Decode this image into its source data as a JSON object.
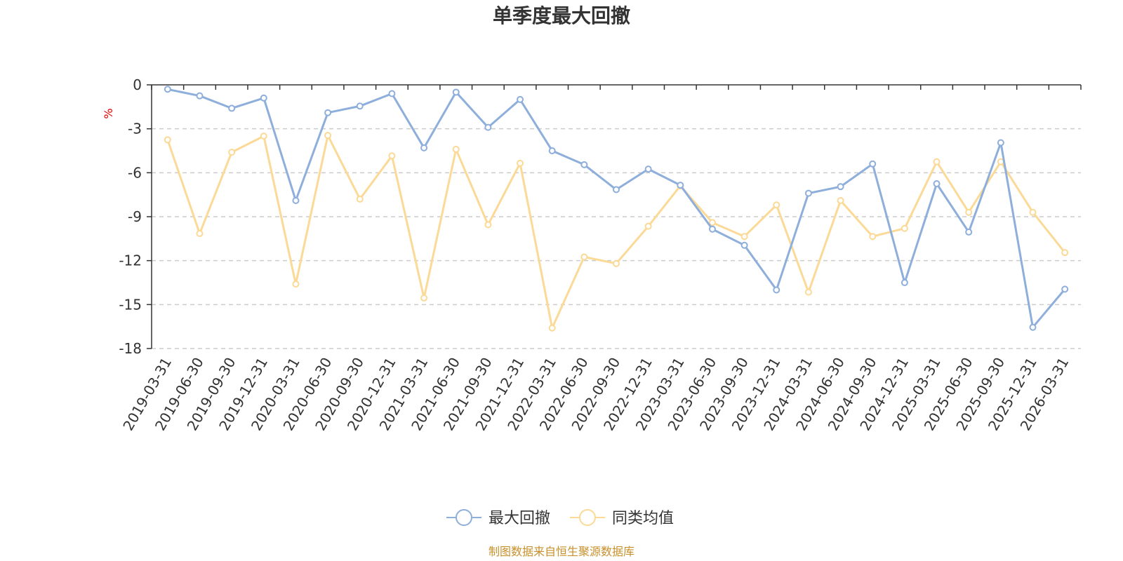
{
  "chart_data": {
    "type": "line",
    "title": "单季度最大回撤",
    "ylabel": "%",
    "ylim": [
      -18,
      0
    ],
    "yticks": [
      0,
      -3,
      -6,
      -9,
      -12,
      -15,
      -18
    ],
    "grid": true,
    "legend_position": "bottom",
    "categories": [
      "2019-03-31",
      "2019-06-30",
      "2019-09-30",
      "2019-12-31",
      "2020-03-31",
      "2020-06-30",
      "2020-09-30",
      "2020-12-31",
      "2021-03-31",
      "2021-06-30",
      "2021-09-30",
      "2021-12-31",
      "2022-03-31",
      "2022-06-30",
      "2022-09-30",
      "2022-12-31",
      "2023-03-31",
      "2023-06-30",
      "2023-09-30",
      "2023-12-31",
      "2024-03-31",
      "2024-06-30",
      "2024-09-30",
      "2024-12-31",
      "2025-03-31",
      "2025-06-30",
      "2025-09-30",
      "2025-12-31",
      "2026-03-31"
    ],
    "series": [
      {
        "name": "最大回撤",
        "color": "#8eaedb",
        "values": [
          -0.3,
          -0.75,
          -1.6,
          -0.9,
          -7.9,
          -1.9,
          -1.45,
          -0.6,
          -4.3,
          -0.5,
          -2.9,
          -1.0,
          -4.5,
          -5.45,
          -7.15,
          -5.75,
          -6.85,
          -9.85,
          -10.95,
          -14.0,
          -7.4,
          -6.95,
          -5.4,
          -13.5,
          -6.75,
          -10.05,
          -3.95,
          -16.55,
          -13.95
        ]
      },
      {
        "name": "同类均值",
        "color": "#fbd996",
        "values": [
          -3.75,
          -10.15,
          -4.6,
          -3.5,
          -13.6,
          -3.45,
          -7.8,
          -4.85,
          -14.55,
          -4.4,
          -9.55,
          -5.35,
          -16.6,
          -11.75,
          -12.2,
          -9.65,
          -6.9,
          -9.4,
          -10.35,
          -8.2,
          -14.15,
          -7.9,
          -10.35,
          -9.8,
          -5.25,
          -8.7,
          -5.25,
          -8.7,
          -11.45
        ]
      }
    ],
    "source": "制图数据来自恒生聚源数据库"
  }
}
